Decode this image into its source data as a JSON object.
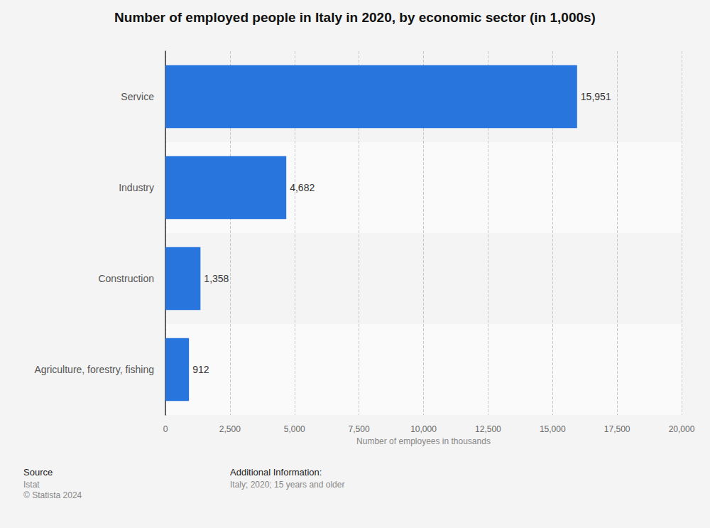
{
  "chart_data": {
    "type": "bar",
    "title": "Number of employed people in Italy in 2020, by economic sector (in 1,000s)",
    "orientation": "horizontal",
    "categories": [
      "Service",
      "Industry",
      "Construction",
      "Agriculture, forestry, fishing"
    ],
    "values": [
      15951,
      4682,
      1358,
      912
    ],
    "value_labels": [
      "15,951",
      "4,682",
      "1,358",
      "912"
    ],
    "data_labels": true,
    "color": "#2876dd",
    "xlabel": "Number of employees in thousands",
    "xlim": [
      0,
      20000
    ],
    "xticks": [
      0,
      {
        "value": 2500,
        "label": "2,500"
      },
      {
        "value": 5000,
        "label": "5,000"
      },
      {
        "value": 7500,
        "label": "7,500"
      },
      {
        "value": 10000,
        "label": "10,000"
      },
      {
        "value": 12500,
        "label": "12,500"
      },
      {
        "value": 15000,
        "label": "15,000"
      },
      {
        "value": 17500,
        "label": "17,500"
      },
      {
        "value": 20000,
        "label": "20,000"
      }
    ],
    "grid": true,
    "source_label": "Source",
    "source": "Istat",
    "copyright": "© Statista 2024",
    "additional_info_label": "Additional Information:",
    "additional_info": "Italy; 2020; 15 years and older"
  }
}
